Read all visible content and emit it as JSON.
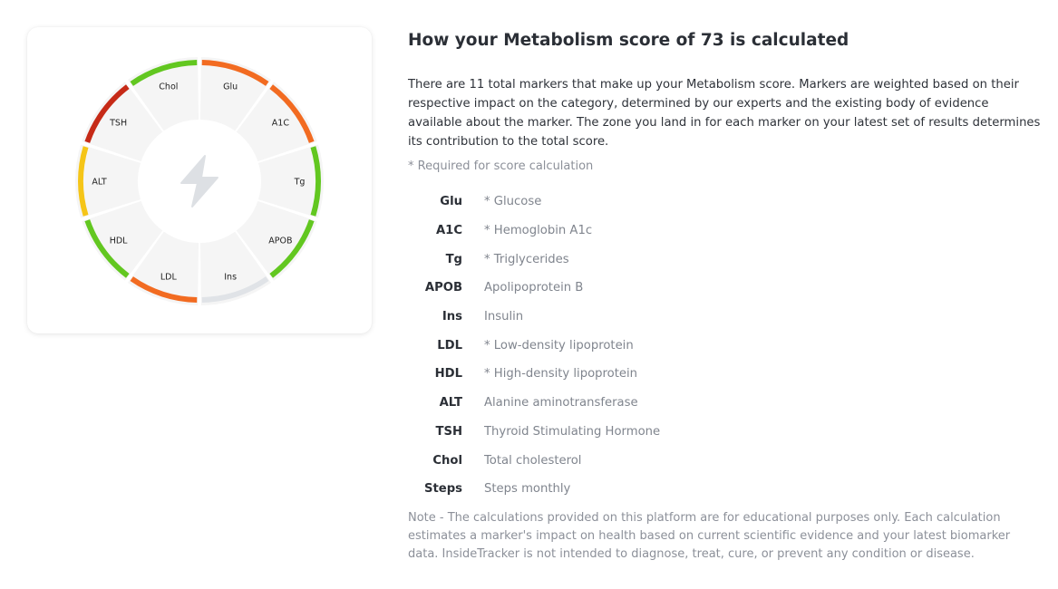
{
  "chart_data": {
    "type": "pie",
    "center_icon": "lightning-icon",
    "segments": [
      {
        "label": "Glu",
        "color": "#f26b21"
      },
      {
        "label": "A1C",
        "color": "#f26b21"
      },
      {
        "label": "Tg",
        "color": "#62c720"
      },
      {
        "label": "APOB",
        "color": "#62c720"
      },
      {
        "label": "Ins",
        "color": "#e0e3e7"
      },
      {
        "label": "LDL",
        "color": "#f26b21"
      },
      {
        "label": "HDL",
        "color": "#62c720"
      },
      {
        "label": "ALT",
        "color": "#f5c518"
      },
      {
        "label": "TSH",
        "color": "#c62a17"
      },
      {
        "label": "Chol",
        "color": "#62c720"
      }
    ]
  },
  "panel": {
    "title": "How your Metabolism score of 73 is calculated",
    "description": "There are 11 total markers that make up your Metabolism score. Markers are weighted based on their respective impact on the category, determined by our experts and the existing body of evidence available about the marker. The zone you land in for each marker on your latest set of results determines its contribution to the total score.",
    "required_note": "* Required for score calculation",
    "markers": [
      {
        "abbr": "Glu",
        "name": "* Glucose"
      },
      {
        "abbr": "A1C",
        "name": "* Hemoglobin A1c"
      },
      {
        "abbr": "Tg",
        "name": "* Triglycerides"
      },
      {
        "abbr": "APOB",
        "name": "Apolipoprotein B"
      },
      {
        "abbr": "Ins",
        "name": "Insulin"
      },
      {
        "abbr": "LDL",
        "name": "* Low-density lipoprotein"
      },
      {
        "abbr": "HDL",
        "name": "* High-density lipoprotein"
      },
      {
        "abbr": "ALT",
        "name": "Alanine aminotransferase"
      },
      {
        "abbr": "TSH",
        "name": "Thyroid Stimulating Hormone"
      },
      {
        "abbr": "Chol",
        "name": "Total cholesterol"
      },
      {
        "abbr": "Steps",
        "name": "Steps monthly"
      }
    ],
    "disclaimer": "Note - The calculations provided on this platform are for educational purposes only. Each calculation estimates a marker's impact on health based on current scientific evidence and your latest biomarker data. InsideTracker is not intended to diagnose, treat, cure, or prevent any condition or disease."
  }
}
